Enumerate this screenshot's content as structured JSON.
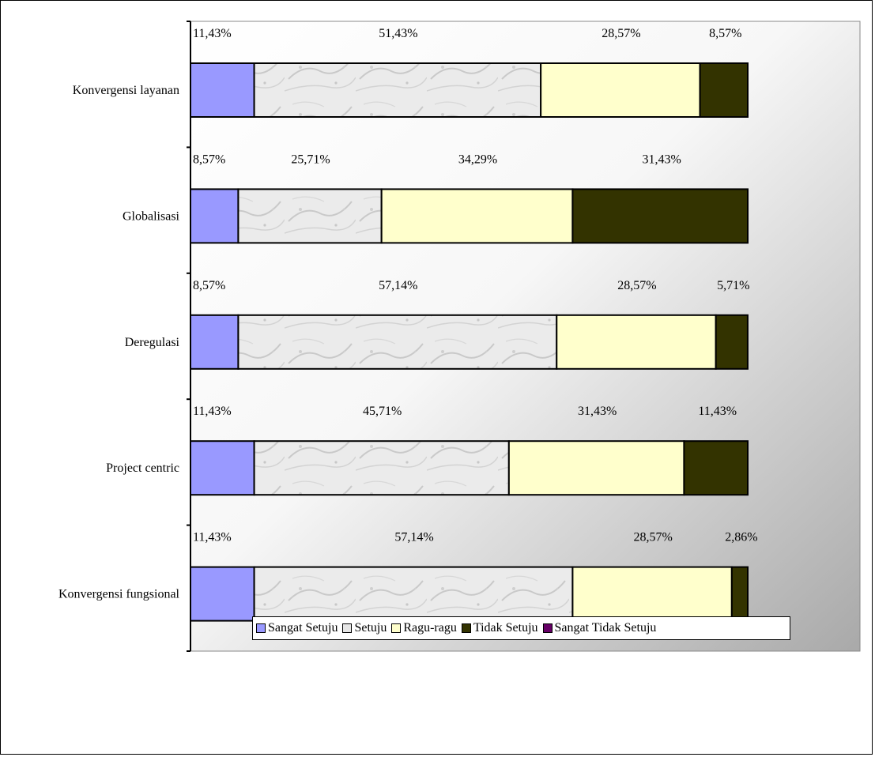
{
  "chart_data": {
    "type": "bar",
    "stacked": true,
    "orientation": "horizontal",
    "categories": [
      "Konvergensi layanan",
      "Globalisasi",
      "Deregulasi",
      "Project centric",
      "Konvergensi fungsional"
    ],
    "series": [
      {
        "name": "Sangat Setuju",
        "color": "#9999ff",
        "values": [
          11.43,
          8.57,
          8.57,
          11.43,
          11.43
        ],
        "labels": [
          "11,43%",
          "8,57%",
          "8,57%",
          "11,43%",
          "11,43%"
        ]
      },
      {
        "name": "Setuju",
        "color": "#e6e6e6",
        "values": [
          51.43,
          25.71,
          57.14,
          45.71,
          57.14
        ],
        "labels": [
          "51,43%",
          "25,71%",
          "57,14%",
          "45,71%",
          "57,14%"
        ]
      },
      {
        "name": "Ragu-ragu",
        "color": "#ffffcc",
        "values": [
          28.57,
          34.29,
          28.57,
          31.43,
          28.57
        ],
        "labels": [
          "28,57%",
          "34,29%",
          "28,57%",
          "31,43%",
          "28,57%"
        ]
      },
      {
        "name": "Tidak Setuju",
        "color": "#333300",
        "values": [
          8.57,
          31.43,
          5.71,
          11.43,
          2.86
        ],
        "labels": [
          "8,57%",
          "31,43%",
          "5,71%",
          "11,43%",
          "2,86%"
        ]
      },
      {
        "name": "Sangat Tidak Setuju",
        "color": "#660066",
        "values": [
          0,
          0,
          0,
          0,
          0
        ],
        "labels": [
          "",
          "",
          "",
          "",
          ""
        ]
      }
    ],
    "xlim": [
      0,
      100
    ],
    "legend_position": "bottom",
    "grid": false
  }
}
